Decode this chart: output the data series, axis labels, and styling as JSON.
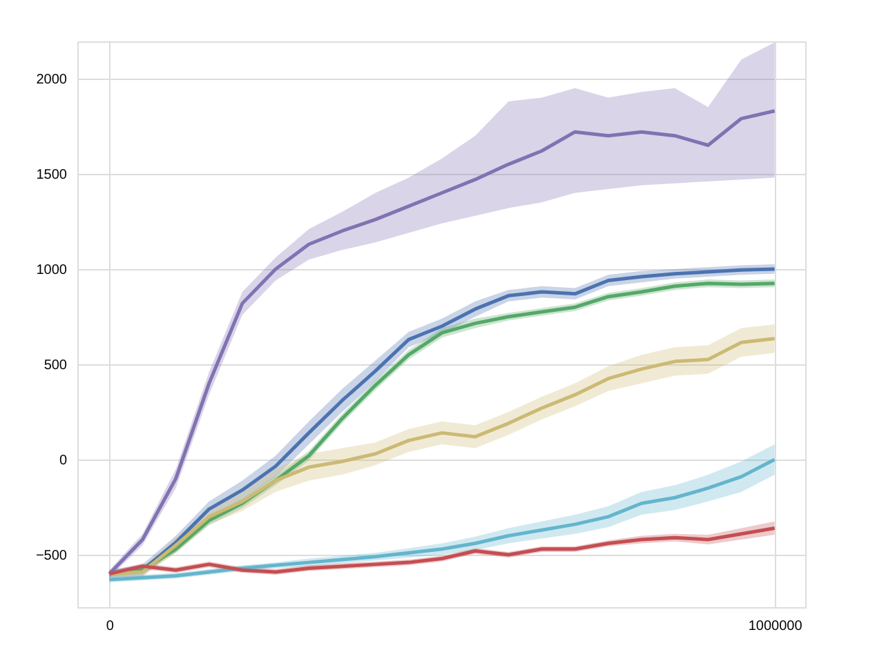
{
  "chart_data": {
    "type": "line",
    "x": [
      0,
      50000,
      100000,
      150000,
      200000,
      250000,
      300000,
      350000,
      400000,
      450000,
      500000,
      550000,
      600000,
      650000,
      700000,
      750000,
      800000,
      850000,
      900000,
      950000,
      1000000
    ],
    "xlim": [
      -48000,
      1046000
    ],
    "xticks": [
      0,
      1000000
    ],
    "ylim": [
      -775,
      2195
    ],
    "yticks": [
      -500,
      0,
      500,
      1000,
      1500,
      2000
    ],
    "grid": true,
    "series": [
      {
        "color": "#8172b2",
        "values": [
          -600,
          -420,
          -100,
          400,
          820,
          1000,
          1130,
          1200,
          1260,
          1330,
          1400,
          1470,
          1550,
          1620,
          1720,
          1700,
          1720,
          1700,
          1650,
          1790,
          1830
        ],
        "lower": [
          -620,
          -450,
          -150,
          340,
          760,
          940,
          1050,
          1100,
          1140,
          1190,
          1240,
          1280,
          1320,
          1350,
          1400,
          1420,
          1440,
          1450,
          1460,
          1470,
          1480
        ],
        "upper": [
          -580,
          -390,
          -50,
          460,
          880,
          1060,
          1210,
          1300,
          1400,
          1480,
          1580,
          1700,
          1880,
          1900,
          1950,
          1900,
          1930,
          1950,
          1850,
          2100,
          2190
        ]
      },
      {
        "color": "#4c72b0",
        "values": [
          -600,
          -580,
          -435,
          -260,
          -160,
          -35,
          140,
          310,
          465,
          630,
          700,
          790,
          860,
          880,
          870,
          940,
          960,
          975,
          985,
          995,
          1000
        ],
        "lower": [
          -620,
          -610,
          -470,
          -300,
          -210,
          -90,
          80,
          250,
          410,
          590,
          660,
          750,
          830,
          850,
          840,
          910,
          930,
          950,
          960,
          970,
          975
        ],
        "upper": [
          -580,
          -550,
          -400,
          -220,
          -110,
          20,
          200,
          370,
          520,
          670,
          740,
          830,
          890,
          910,
          900,
          970,
          990,
          1000,
          1010,
          1020,
          1025
        ]
      },
      {
        "color": "#55a868",
        "values": [
          -600,
          -580,
          -470,
          -320,
          -230,
          -110,
          20,
          215,
          390,
          550,
          665,
          715,
          750,
          775,
          800,
          855,
          880,
          910,
          925,
          920,
          925
        ],
        "lower": [
          -615,
          -600,
          -490,
          -345,
          -255,
          -135,
          -5,
          190,
          365,
          525,
          640,
          690,
          730,
          755,
          780,
          835,
          860,
          890,
          905,
          900,
          905
        ],
        "upper": [
          -585,
          -560,
          -450,
          -295,
          -205,
          -85,
          45,
          240,
          415,
          575,
          690,
          740,
          770,
          795,
          820,
          875,
          900,
          930,
          945,
          940,
          945
        ]
      },
      {
        "color": "#ccb974",
        "values": [
          -600,
          -590,
          -450,
          -300,
          -220,
          -110,
          -40,
          -10,
          30,
          100,
          140,
          120,
          190,
          270,
          340,
          425,
          475,
          515,
          525,
          615,
          635
        ],
        "lower": [
          -620,
          -615,
          -490,
          -340,
          -270,
          -170,
          -110,
          -80,
          -30,
          40,
          80,
          60,
          130,
          210,
          280,
          360,
          400,
          440,
          450,
          540,
          560
        ],
        "upper": [
          -580,
          -565,
          -410,
          -260,
          -170,
          -50,
          30,
          60,
          90,
          160,
          200,
          180,
          250,
          330,
          400,
          490,
          550,
          590,
          600,
          690,
          710
        ]
      },
      {
        "color": "#64b5cd",
        "values": [
          -630,
          -620,
          -610,
          -590,
          -570,
          -555,
          -540,
          -525,
          -510,
          -490,
          -470,
          -440,
          -400,
          -370,
          -340,
          -300,
          -230,
          -200,
          -150,
          -90,
          0
        ],
        "lower": [
          -645,
          -635,
          -625,
          -605,
          -585,
          -570,
          -560,
          -545,
          -530,
          -515,
          -500,
          -475,
          -440,
          -415,
          -390,
          -355,
          -290,
          -265,
          -220,
          -170,
          -80
        ],
        "upper": [
          -615,
          -605,
          -595,
          -575,
          -555,
          -540,
          -520,
          -505,
          -490,
          -465,
          -440,
          -405,
          -360,
          -325,
          -290,
          -245,
          -170,
          -135,
          -80,
          -10,
          80
        ]
      },
      {
        "color": "#c44e52",
        "values": [
          -600,
          -560,
          -580,
          -550,
          -580,
          -590,
          -570,
          -560,
          -550,
          -540,
          -520,
          -480,
          -500,
          -470,
          -470,
          -440,
          -420,
          -410,
          -420,
          -390,
          -360
        ],
        "lower": [
          -615,
          -575,
          -595,
          -565,
          -595,
          -605,
          -585,
          -575,
          -565,
          -555,
          -535,
          -495,
          -515,
          -485,
          -485,
          -455,
          -440,
          -430,
          -445,
          -420,
          -395
        ],
        "upper": [
          -585,
          -545,
          -565,
          -535,
          -565,
          -575,
          -555,
          -545,
          -535,
          -525,
          -505,
          -465,
          -485,
          -455,
          -455,
          -425,
          -400,
          -390,
          -395,
          -360,
          -325
        ]
      }
    ]
  }
}
